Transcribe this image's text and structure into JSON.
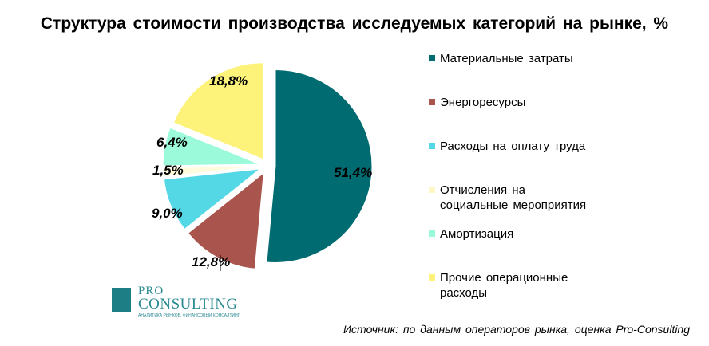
{
  "chart_data": {
    "type": "pie",
    "title": "Структура стоимости производства исследуемых категорий на рынке, %",
    "categories": [
      "Материальные затраты",
      "Энергоресурсы",
      "Расходы на оплату труда",
      "Отчисления на социальные мероприятия",
      "Амортизация",
      "Прочие операционные расходы"
    ],
    "values": [
      51.4,
      12.8,
      9.0,
      1.5,
      6.4,
      18.8
    ],
    "labels": [
      "51,4%",
      "12,8%",
      "9,0%",
      "1,5%",
      "6,4%",
      "18,8%"
    ],
    "colors": [
      "#006b70",
      "#a9544c",
      "#55d8e6",
      "#fffbdc",
      "#9bfad9",
      "#fdf27a"
    ],
    "legend_position": "right",
    "legend_entries": [
      "Материальные затраты",
      "Энергоресурсы",
      "Расходы на оплату труда",
      "Отчисления на\nсоциальные мероприятия",
      "Амортизация",
      "Прочие операционные\nрасходы"
    ],
    "exploded": true
  },
  "logo": {
    "pro": "PRO",
    "consulting": "CONSULTING",
    "tagline": "АНАЛИТИКА РЫНКОВ. ФИНАНСОВЫЙ КОНСАЛТИНГ"
  },
  "source": "Источник: по данным операторов рынка, оценка Pro-Consulting"
}
